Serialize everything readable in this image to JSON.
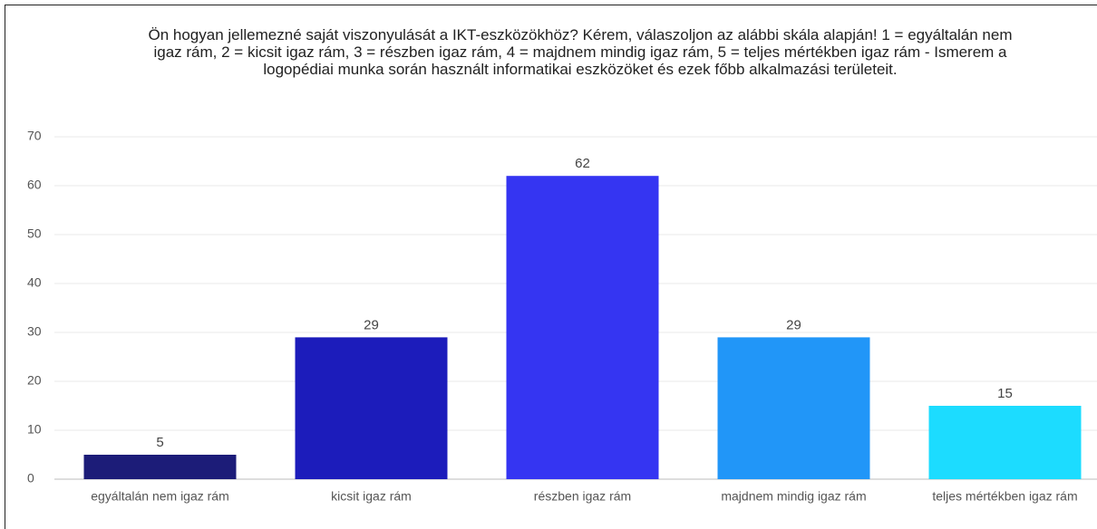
{
  "chart_data": {
    "type": "bar",
    "title": "Ön hogyan jellemezné saját viszonyulását a IKT-eszközökhöz? Kérem, válaszoljon az alábbi skála alapján! 1 = egyáltalán nem igaz rám, 2 = kicsit igaz rám, 3 = részben igaz rám, 4 = majdnem mindig igaz rám, 5 = teljes mértékben igaz rám - Ismerem a logopédiai munka során használt informatikai eszközöket és ezek főbb alkalmazási területeit.",
    "categories": [
      "egyáltalán nem igaz rám",
      "kicsit igaz rám",
      "részben igaz rám",
      "majdnem mindig igaz rám",
      "teljes mértékben igaz rám"
    ],
    "values": [
      5,
      29,
      62,
      29,
      15
    ],
    "colors": [
      "#1c1c78",
      "#1c1cbb",
      "#3535f2",
      "#2196f8",
      "#1cdcff"
    ],
    "ylim": [
      0,
      70
    ],
    "yticks": [
      0,
      10,
      20,
      30,
      40,
      50,
      60,
      70
    ],
    "grid": true
  }
}
